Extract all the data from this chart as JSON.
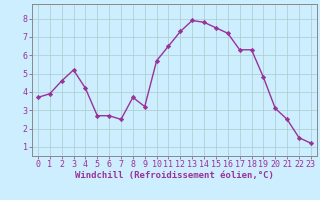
{
  "x": [
    0,
    1,
    2,
    3,
    4,
    5,
    6,
    7,
    8,
    9,
    10,
    11,
    12,
    13,
    14,
    15,
    16,
    17,
    18,
    19,
    20,
    21,
    22,
    23
  ],
  "y": [
    3.7,
    3.9,
    4.6,
    5.2,
    4.2,
    2.7,
    2.7,
    2.5,
    3.7,
    3.2,
    5.7,
    6.5,
    7.3,
    7.9,
    7.8,
    7.5,
    7.2,
    6.3,
    6.3,
    4.8,
    3.1,
    2.5,
    1.5,
    1.2
  ],
  "line_color": "#993399",
  "marker": "D",
  "markersize": 2.2,
  "linewidth": 1.0,
  "bg_color": "#cceeff",
  "grid_color": "#aacccc",
  "xlabel": "Windchill (Refroidissement éolien,°C)",
  "xlabel_fontsize": 6.5,
  "xlabel_color": "#993399",
  "xlim": [
    -0.5,
    23.5
  ],
  "ylim": [
    0.5,
    8.8
  ],
  "yticks": [
    1,
    2,
    3,
    4,
    5,
    6,
    7,
    8
  ],
  "xticks": [
    0,
    1,
    2,
    3,
    4,
    5,
    6,
    7,
    8,
    9,
    10,
    11,
    12,
    13,
    14,
    15,
    16,
    17,
    18,
    19,
    20,
    21,
    22,
    23
  ],
  "tick_fontsize": 6.0,
  "tick_color": "#993399",
  "spine_color": "#888888"
}
